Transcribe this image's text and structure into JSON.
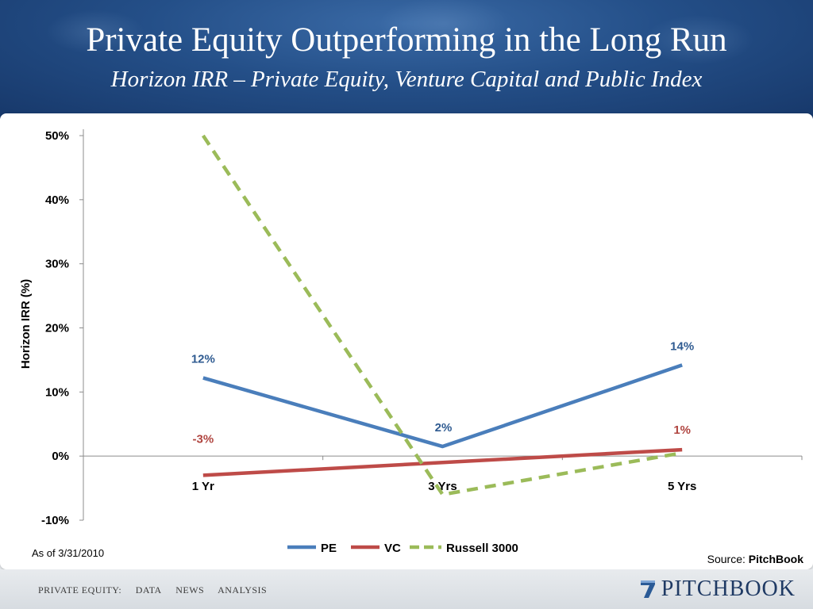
{
  "header": {
    "title": "Private Equity Outperforming in the Long Run",
    "subtitle": "Horizon IRR – Private Equity, Venture Capital and Public Index"
  },
  "chart_data": {
    "type": "line",
    "categories": [
      "1 Yr",
      "3 Yrs",
      "5 Yrs"
    ],
    "ylabel": "Horizon IRR (%)",
    "ylim": [
      -10,
      50
    ],
    "yticks": [
      -10,
      0,
      10,
      20,
      30,
      40,
      50
    ],
    "ytick_labels": [
      "-10%",
      "0%",
      "10%",
      "20%",
      "30%",
      "40%",
      "50%"
    ],
    "grid": false,
    "legend_position": "bottom",
    "series": [
      {
        "name": "PE",
        "values": [
          12.2,
          1.5,
          14.2
        ],
        "color": "#4a7ebb",
        "dashed": false,
        "data_labels": [
          "12%",
          "2%",
          "14%"
        ]
      },
      {
        "name": "VC",
        "values": [
          -3.0,
          -1.0,
          1.0
        ],
        "color": "#be4b48",
        "dashed": false,
        "data_labels": [
          "-3%",
          "",
          "1%"
        ]
      },
      {
        "name": "Russell 3000",
        "values": [
          50.0,
          -6.0,
          0.5
        ],
        "color": "#9bbb59",
        "dashed": true,
        "data_labels": [
          "",
          "",
          ""
        ]
      }
    ]
  },
  "notes": {
    "as_of": "As of 3/31/2010",
    "source_prefix": "Source: ",
    "source_name": "PitchBook"
  },
  "footer": {
    "nav": [
      "PRIVATE EQUITY:",
      "DATA",
      "NEWS",
      "ANALYSIS"
    ],
    "logo_text": "PITCHBOOK"
  }
}
